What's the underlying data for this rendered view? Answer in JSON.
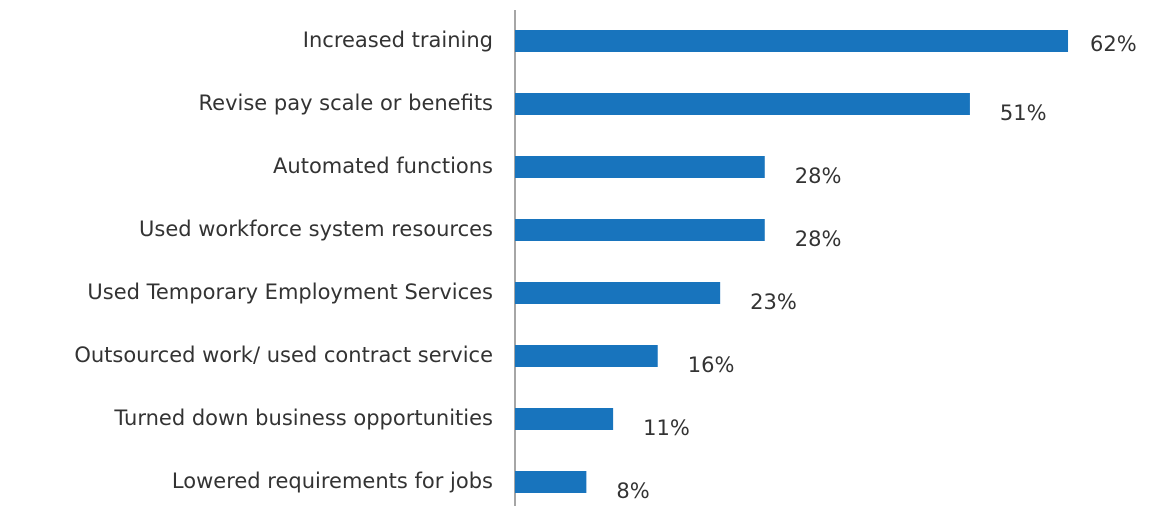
{
  "chart_data": {
    "type": "bar",
    "orientation": "horizontal",
    "categories": [
      "Increased training",
      "Revise pay scale or benefits",
      "Automated functions",
      "Used workforce system resources",
      "Used Temporary Employment Services",
      "Outsourced work/ used contract service",
      "Turned down business opportunities",
      "Lowered requirements for jobs"
    ],
    "values": [
      62,
      51,
      28,
      28,
      23,
      16,
      11,
      8
    ],
    "value_labels": [
      "62%",
      "51%",
      "28%",
      "28%",
      "23%",
      "16%",
      "11%",
      "8%"
    ],
    "color": "#1874bd"
  }
}
